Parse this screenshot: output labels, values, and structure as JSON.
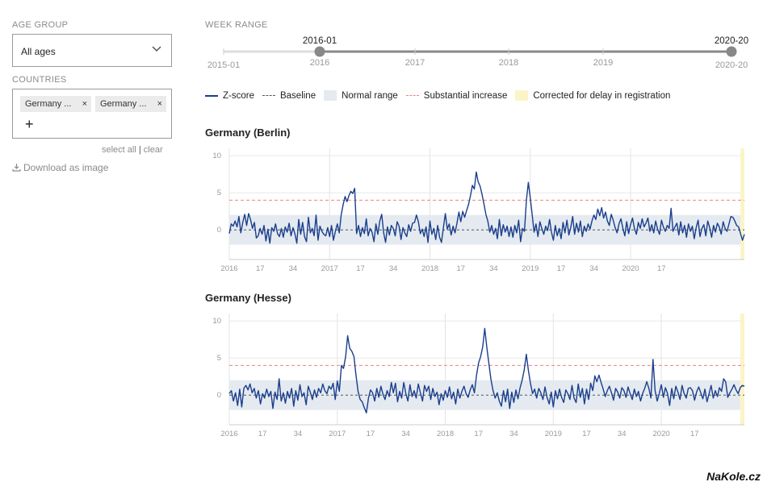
{
  "sidebar": {
    "age_group_label": "AGE GROUP",
    "age_group_value": "All ages",
    "countries_label": "COUNTRIES",
    "chips": [
      "Germany ...",
      "Germany ..."
    ],
    "chip_remove": "×",
    "add": "+",
    "select_all": "select all",
    "separator": "|",
    "clear": "clear",
    "download": "Download as image"
  },
  "week_range": {
    "label": "WEEK RANGE",
    "start_min": "2015-01",
    "end_max": "2020-20",
    "selected_start": "2016-01",
    "selected_end": "2020-20",
    "years": [
      "2016",
      "2017",
      "2018",
      "2019"
    ]
  },
  "legend": {
    "zscore": "Z-score",
    "baseline": "Baseline",
    "normal": "Normal range",
    "substantial": "Substantial increase",
    "corrected": "Corrected for delay in registration"
  },
  "colors": {
    "zscore": "#1a3e8c",
    "baseline": "#555555",
    "normal": "#e4eaf0",
    "substantial": "#e8857f",
    "corrected": "#fbf4c6",
    "slider_active": "#888888",
    "slider_inactive": "#dddddd"
  },
  "chart_data": [
    {
      "type": "line",
      "title": "Germany (Berlin)",
      "x_ticks": [
        "2016",
        "17",
        "34",
        "2017",
        "17",
        "34",
        "2018",
        "17",
        "34",
        "2019",
        "17",
        "34",
        "2020",
        "17"
      ],
      "y_ticks": [
        10,
        5,
        0
      ],
      "ylim": [
        -4,
        11
      ],
      "baseline": 0,
      "normal_range": [
        -2,
        2
      ],
      "substantial_increase": 4,
      "corrected_weeks": 2,
      "series": [
        {
          "values": [
            -0.5,
            0.8,
            0.5,
            1.2,
            0.4,
            1.8,
            -0.4,
            1.0,
            2.1,
            0.6,
            2.2,
            1.4,
            0.2,
            1.0,
            -1.1,
            -0.8,
            0.2,
            -0.6,
            0.6,
            -1.5,
            0.1,
            -1.8,
            0.3,
            -0.2,
            0.8,
            -0.5,
            -0.9,
            0.2,
            -1.0,
            0.4,
            -0.3,
            0.9,
            -0.8,
            0.3,
            -0.5,
            -1.8,
            1.4,
            -0.6,
            1.0,
            -0.9,
            -1.6,
            1.7,
            -0.4,
            0.2,
            -0.8,
            2.0,
            -1.4,
            0.5,
            -0.2,
            -0.6,
            -0.8,
            0.3,
            -0.9,
            0.6,
            -1.4,
            -0.2,
            0.8,
            -0.4,
            2.0,
            3.4,
            4.5,
            3.8,
            4.6,
            5.2,
            4.9,
            5.6,
            -0.5,
            0.6,
            -0.9,
            0.3,
            -0.5,
            1.5,
            -0.8,
            0.2,
            -0.3,
            -1.6,
            0.8,
            -0.6,
            1.2,
            2.1,
            -0.4,
            -1.7,
            0.4,
            -0.7,
            0.6,
            0.2,
            -0.8,
            1.1,
            0.5,
            -1.3,
            0.3,
            -0.4,
            -0.9,
            0.7,
            -0.2,
            0.9,
            1.0,
            2.0,
            1.1,
            -0.5,
            0.1,
            -0.9,
            0.4,
            -1.7,
            1.2,
            -0.6,
            0.2,
            -1.3,
            0.6,
            -1.0,
            -1.7,
            0.3,
            2.2,
            0.1,
            0.8,
            -0.7,
            0.5,
            -0.4,
            0.9,
            2.4,
            1.1,
            2.5,
            1.7,
            2.6,
            3.4,
            4.6,
            6.0,
            5.5,
            7.8,
            6.5,
            5.9,
            4.8,
            3.5,
            2.1,
            1.2,
            -0.3,
            0.6,
            -0.6,
            0.2,
            -1.2,
            1.4,
            -0.8,
            0.7,
            -0.3,
            0.5,
            -0.9,
            0.4,
            -1.0,
            0.6,
            -0.4,
            1.3,
            -1.6,
            0.2,
            -0.2,
            4.0,
            6.4,
            4.3,
            2.0,
            -0.3,
            0.8,
            -0.9,
            1.1,
            0.2,
            -0.6,
            0.5,
            -0.1,
            1.4,
            -0.3,
            -1.4,
            0.6,
            -0.8,
            0.2,
            -1.2,
            1.0,
            -0.4,
            1.3,
            -0.7,
            0.3,
            1.8,
            -0.6,
            0.9,
            -0.3,
            1.2,
            -0.9,
            0.5,
            -0.2,
            0.8,
            0.1,
            1.2,
            2.0,
            1.4,
            2.8,
            1.9,
            3.0,
            1.6,
            2.4,
            1.2,
            0.6,
            2.1,
            1.3,
            0.3,
            -0.4,
            0.8,
            1.5,
            0.2,
            -0.8,
            1.1,
            -0.5,
            0.7,
            1.6,
            0.2,
            -0.6,
            1.0,
            0.2,
            1.5,
            0.4,
            0.9,
            1.6,
            -0.2,
            0.7,
            -0.4,
            1.2,
            0.1,
            -0.6,
            1.3,
            0.4,
            -0.2,
            0.6,
            0.2,
            2.9,
            -0.2,
            0.4,
            0.9,
            -0.7,
            1.1,
            -0.4,
            0.6,
            -1.0,
            0.8,
            -0.2,
            0.5,
            -1.2,
            0.3,
            1.3,
            -0.9,
            0.2,
            0.7,
            -0.8,
            1.2,
            0.3,
            -1.0,
            0.6,
            -0.3,
            0.9,
            0.4,
            -0.6,
            1.1,
            0.2,
            -0.2,
            0.8,
            1.8,
            1.7,
            1.2,
            0.6,
            0.4,
            -0.5,
            -1.4,
            -0.6
          ]
        }
      ]
    },
    {
      "type": "line",
      "title": "Germany (Hesse)",
      "x_ticks": [
        "2016",
        "17",
        "34",
        "2017",
        "17",
        "34",
        "2018",
        "17",
        "34",
        "2019",
        "17",
        "34",
        "2020",
        "17"
      ],
      "y_ticks": [
        10,
        5,
        0
      ],
      "ylim": [
        -4,
        11
      ],
      "baseline": 0,
      "normal_range": [
        -2,
        2
      ],
      "substantial_increase": 4,
      "corrected_weeks": 2,
      "series": [
        {
          "values": [
            0.2,
            0.6,
            -0.8,
            0.3,
            -1.4,
            0.8,
            -1.6,
            0.9,
            1.3,
            0.7,
            1.5,
            0.3,
            0.9,
            -0.4,
            0.6,
            -1.2,
            0.2,
            -0.4,
            0.8,
            -0.2,
            0.5,
            -1.8,
            0.4,
            -0.6,
            2.2,
            -0.8,
            0.3,
            -1.1,
            0.5,
            -0.4,
            0.9,
            -1.5,
            0.6,
            -0.7,
            1.4,
            -0.2,
            0.3,
            -1.3,
            1.2,
            0.4,
            -0.6,
            0.7,
            -0.3,
            0.9,
            0.3,
            1.5,
            0.6,
            0.2,
            1.2,
            0.8,
            1.6,
            -0.6,
            1.9,
            0.5,
            4.0,
            3.6,
            5.2,
            8.0,
            6.3,
            5.9,
            5.2,
            2.7,
            0.5,
            -0.6,
            -0.9,
            -1.7,
            -2.4,
            -0.4,
            0.7,
            0.3,
            -0.8,
            0.9,
            -0.3,
            1.2,
            0.1,
            -0.6,
            0.6,
            -0.2,
            1.7,
            0.3,
            1.6,
            -0.9,
            0.5,
            -0.4,
            1.7,
            0.2,
            -0.8,
            1.4,
            -0.2,
            0.6,
            -0.4,
            1.5,
            0.3,
            -0.8,
            1.3,
            0.5,
            1.2,
            -0.6,
            0.9,
            -0.2,
            0.4,
            -1.3,
            0.2,
            -0.7,
            0.6,
            -0.3,
            1.1,
            -0.5,
            0.4,
            -1.2,
            0.8,
            -0.4,
            0.5,
            1.2,
            0.2,
            -0.3,
            0.7,
            1.4,
            0.3,
            2.6,
            4.3,
            5.2,
            6.5,
            9.0,
            6.4,
            4.2,
            2.1,
            0.6,
            -0.4,
            0.3,
            -0.8,
            -1.5,
            0.6,
            -0.9,
            0.8,
            -1.8,
            0.4,
            -1.0,
            0.7,
            -0.5,
            1.0,
            2.0,
            3.4,
            5.5,
            3.3,
            1.6,
            0.2,
            0.8,
            -0.4,
            0.9,
            0.3,
            -0.6,
            1.1,
            -0.3,
            -1.2,
            0.4,
            -1.6,
            0.6,
            -0.5,
            0.8,
            -0.3,
            -1.0,
            0.7,
            0.2,
            -0.6,
            1.3,
            -0.4,
            -1.0,
            1.5,
            -0.3,
            0.9,
            -1.2,
            0.8,
            -0.6,
            1.6,
            0.6,
            2.6,
            1.8,
            2.7,
            1.7,
            0.8,
            -0.2,
            0.6,
            1.2,
            0.3,
            -0.7,
            0.9,
            0.4,
            -0.4,
            1.0,
            0.6,
            -0.3,
            1.1,
            0.2,
            -0.6,
            0.8,
            -0.2,
            0.5,
            -0.8,
            0.2,
            0.9,
            1.8,
            0.9,
            -0.4,
            4.8,
            0.6,
            -0.8,
            0.2,
            1.4,
            -0.3,
            1.0,
            0.2,
            -1.4,
            0.9,
            -0.5,
            1.2,
            0.4,
            -0.6,
            1.3,
            0.2,
            -0.4,
            0.9,
            1.0,
            0.6,
            -0.7,
            0.4,
            1.1,
            0.3,
            -0.5,
            0.8,
            -0.9,
            0.2,
            1.3,
            -0.4,
            0.6,
            -0.2,
            1.0,
            0.5,
            2.2,
            1.8,
            -0.3,
            0.3,
            0.8,
            1.4,
            0.7,
            0.2,
            1.0,
            1.3,
            1.2
          ]
        }
      ]
    }
  ],
  "watermark": "NaKole.cz"
}
